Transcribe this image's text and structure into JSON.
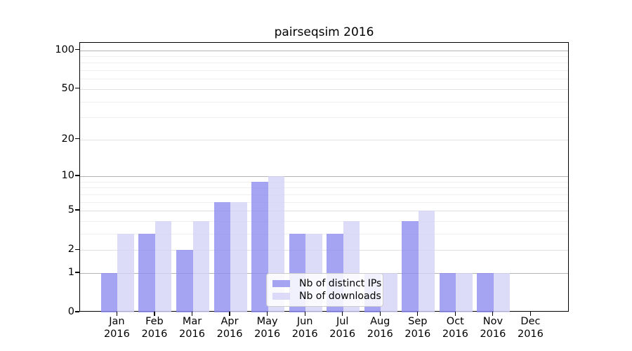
{
  "chart_data": {
    "type": "bar",
    "title": "pairseqsim 2016",
    "categories": [
      "Jan",
      "Feb",
      "Mar",
      "Apr",
      "May",
      "Jun",
      "Jul",
      "Aug",
      "Sep",
      "Oct",
      "Nov",
      "Dec"
    ],
    "category_year": "2016",
    "series": [
      {
        "name": "Nb of distinct IPs",
        "color": "#8d8def",
        "values": [
          1,
          3,
          2,
          6,
          9,
          3,
          3,
          1,
          4,
          1,
          1,
          0
        ]
      },
      {
        "name": "Nb of downloads",
        "color": "#d3d3f7",
        "values": [
          3,
          4,
          4,
          6,
          10,
          3,
          4,
          1,
          5,
          1,
          1,
          0
        ]
      }
    ],
    "bar_opacity": 0.8,
    "y_scale": "log10(1+value)",
    "ylim": [
      0,
      115
    ],
    "y_ticks": [
      0,
      1,
      2,
      5,
      10,
      20,
      50,
      100
    ],
    "y_minor_gridlines": [
      3,
      4,
      6,
      7,
      8,
      9,
      30,
      40,
      60,
      70,
      80,
      90
    ],
    "grid": true,
    "legend_position": "lower center (inside plot)",
    "colors": {
      "grid_strong": "#b4b4b4",
      "grid_mid": "#e1e1e1",
      "grid_minor": "#efefef",
      "axis": "#000000"
    }
  }
}
